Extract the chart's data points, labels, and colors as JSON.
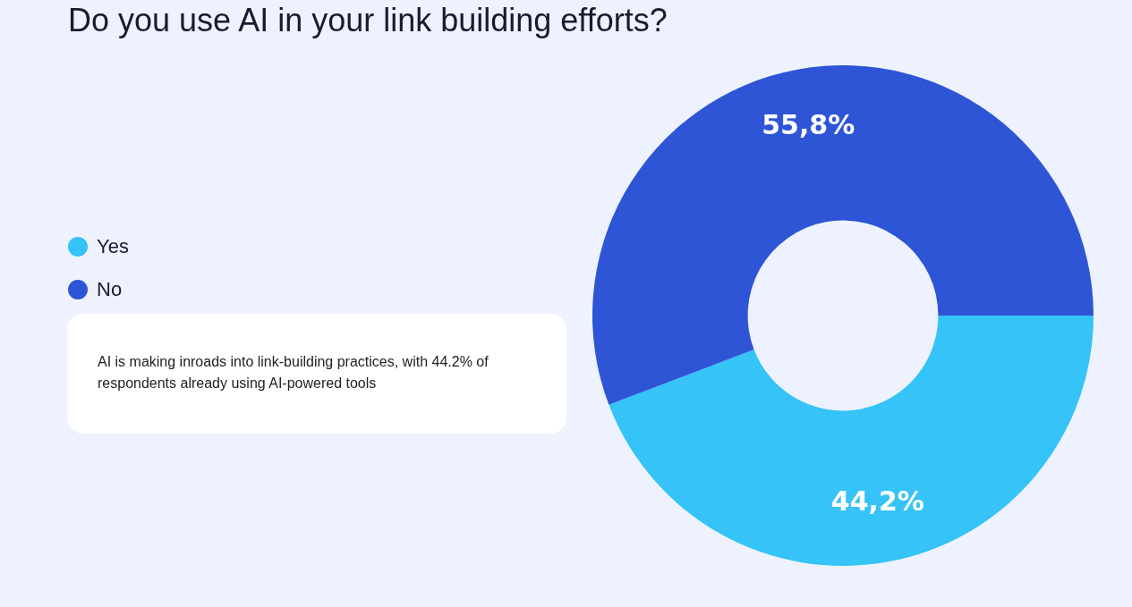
{
  "chart_data": {
    "type": "donut",
    "title": "Do you use AI in your link building efforts?",
    "categories": [
      "Yes",
      "No"
    ],
    "values": [
      44.2,
      55.8
    ],
    "colors": [
      "#35c3f8",
      "#2e55d6"
    ],
    "value_labels": [
      "44,2%",
      "55,8%"
    ],
    "legend": "left",
    "annotations": [
      "AI is making inroads into link-building practices, with 44.2% of respondents already using AI-powered tools"
    ]
  }
}
